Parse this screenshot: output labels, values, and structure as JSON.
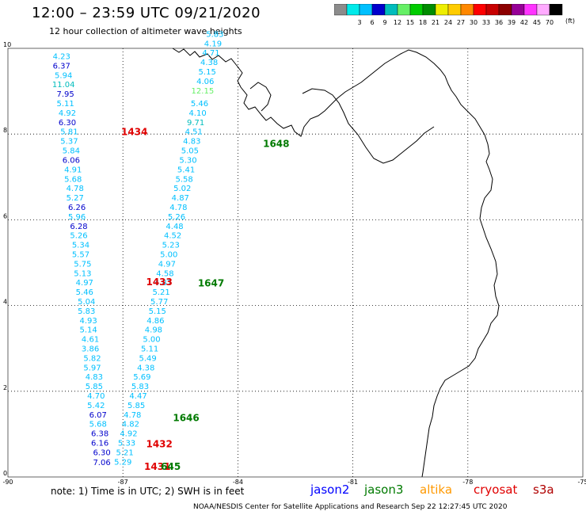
{
  "header": {
    "title": "12:00 – 23:59 UTC 09/21/2020",
    "subtitle": "12 hour collection of altimeter wave heights"
  },
  "colorbar": {
    "unit": "(ft)",
    "stops": [
      {
        "label": "",
        "color": "#8c8c8c"
      },
      {
        "label": "3",
        "color": "#00eaea"
      },
      {
        "label": "6",
        "color": "#00c0ff"
      },
      {
        "label": "9",
        "color": "#0000cc"
      },
      {
        "label": "12",
        "color": "#00bcbc"
      },
      {
        "label": "15",
        "color": "#66f066"
      },
      {
        "label": "18",
        "color": "#00cc00"
      },
      {
        "label": "21",
        "color": "#008c00"
      },
      {
        "label": "24",
        "color": "#eeee00"
      },
      {
        "label": "27",
        "color": "#ffcc00"
      },
      {
        "label": "30",
        "color": "#ff8800"
      },
      {
        "label": "33",
        "color": "#ff0000"
      },
      {
        "label": "36",
        "color": "#c80000"
      },
      {
        "label": "39",
        "color": "#8c0000"
      },
      {
        "label": "42",
        "color": "#960096"
      },
      {
        "label": "45",
        "color": "#ff33ff"
      },
      {
        "label": "70",
        "color": "#ffaaff"
      },
      {
        "label": "",
        "color": "#000000"
      }
    ]
  },
  "axes": {
    "lon_ticks": [
      -90,
      -87,
      -84,
      -81,
      -78,
      -75
    ],
    "lat_ticks": [
      0,
      2,
      4,
      6,
      8,
      10
    ],
    "lon_labels": [
      "-90",
      "-87",
      "-84",
      "-81",
      "-78",
      "-75"
    ],
    "lat_labels": [
      "0",
      "2",
      "4",
      "6",
      "8",
      "10"
    ]
  },
  "track_west": [
    {
      "lon": -88.6,
      "lat": 9.75,
      "value": "4.23"
    },
    {
      "lon": -88.6,
      "lat": 9.53,
      "value": "6.37"
    },
    {
      "lon": -88.55,
      "lat": 9.31,
      "value": "5.94"
    },
    {
      "lon": -88.55,
      "lat": 9.09,
      "value": "11.04"
    },
    {
      "lon": -88.5,
      "lat": 8.87,
      "value": "7.95"
    },
    {
      "lon": -88.5,
      "lat": 8.65,
      "value": "5.11"
    },
    {
      "lon": -88.45,
      "lat": 8.43,
      "value": "4.92"
    },
    {
      "lon": -88.45,
      "lat": 8.21,
      "value": "6.30"
    },
    {
      "lon": -88.4,
      "lat": 7.99,
      "value": "5.81"
    },
    {
      "lon": -88.4,
      "lat": 7.77,
      "value": "5.37"
    },
    {
      "lon": -88.35,
      "lat": 7.55,
      "value": "5.84"
    },
    {
      "lon": -88.35,
      "lat": 7.33,
      "value": "6.06"
    },
    {
      "lon": -88.3,
      "lat": 7.11,
      "value": "4.91"
    },
    {
      "lon": -88.3,
      "lat": 6.89,
      "value": "5.68"
    },
    {
      "lon": -88.25,
      "lat": 6.67,
      "value": "4.78"
    },
    {
      "lon": -88.25,
      "lat": 6.45,
      "value": "5.27"
    },
    {
      "lon": -88.2,
      "lat": 6.23,
      "value": "6.26"
    },
    {
      "lon": -88.2,
      "lat": 6.01,
      "value": "5.96"
    },
    {
      "lon": -88.15,
      "lat": 5.79,
      "value": "6.28"
    },
    {
      "lon": -88.15,
      "lat": 5.57,
      "value": "5.26"
    },
    {
      "lon": -88.1,
      "lat": 5.35,
      "value": "5.34"
    },
    {
      "lon": -88.1,
      "lat": 5.13,
      "value": "5.57"
    },
    {
      "lon": -88.05,
      "lat": 4.91,
      "value": "5.75"
    },
    {
      "lon": -88.05,
      "lat": 4.69,
      "value": "5.13"
    },
    {
      "lon": -88.0,
      "lat": 4.47,
      "value": "4.97"
    },
    {
      "lon": -88.0,
      "lat": 4.25,
      "value": "5.46"
    },
    {
      "lon": -87.95,
      "lat": 4.03,
      "value": "5.04"
    },
    {
      "lon": -87.95,
      "lat": 3.81,
      "value": "5.83"
    },
    {
      "lon": -87.9,
      "lat": 3.59,
      "value": "4.93"
    },
    {
      "lon": -87.9,
      "lat": 3.37,
      "value": "5.14"
    },
    {
      "lon": -87.85,
      "lat": 3.15,
      "value": "4.61"
    },
    {
      "lon": -87.85,
      "lat": 2.93,
      "value": "3.86"
    },
    {
      "lon": -87.8,
      "lat": 2.71,
      "value": "5.82"
    },
    {
      "lon": -87.8,
      "lat": 2.49,
      "value": "5.97"
    },
    {
      "lon": -87.75,
      "lat": 2.27,
      "value": "4.83"
    },
    {
      "lon": -87.75,
      "lat": 2.05,
      "value": "5.85"
    },
    {
      "lon": -87.7,
      "lat": 1.83,
      "value": "4.70"
    },
    {
      "lon": -87.7,
      "lat": 1.61,
      "value": "5.42"
    },
    {
      "lon": -87.65,
      "lat": 1.39,
      "value": "6.07"
    },
    {
      "lon": -87.65,
      "lat": 1.17,
      "value": "5.68"
    },
    {
      "lon": -87.6,
      "lat": 0.95,
      "value": "6.38"
    },
    {
      "lon": -87.6,
      "lat": 0.73,
      "value": "6.16"
    },
    {
      "lon": -87.55,
      "lat": 0.51,
      "value": "6.30"
    },
    {
      "lon": -87.55,
      "lat": 0.28,
      "value": "7.06"
    }
  ],
  "track_east": [
    {
      "lon": -87.0,
      "lat": 0.29,
      "value": "5.29"
    },
    {
      "lon": -86.95,
      "lat": 0.51,
      "value": "5.21"
    },
    {
      "lon": -86.9,
      "lat": 0.73,
      "value": "5.33"
    },
    {
      "lon": -86.85,
      "lat": 0.95,
      "value": "4.92"
    },
    {
      "lon": -86.8,
      "lat": 1.17,
      "value": "4.82"
    },
    {
      "lon": -86.75,
      "lat": 1.39,
      "value": "4.78"
    },
    {
      "lon": -86.65,
      "lat": 1.61,
      "value": "5.85"
    },
    {
      "lon": -86.6,
      "lat": 1.83,
      "value": "4.47"
    },
    {
      "lon": -86.55,
      "lat": 2.05,
      "value": "5.83"
    },
    {
      "lon": -86.5,
      "lat": 2.27,
      "value": "5.69"
    },
    {
      "lon": -86.4,
      "lat": 2.49,
      "value": "4.38"
    },
    {
      "lon": -86.35,
      "lat": 2.71,
      "value": "5.49"
    },
    {
      "lon": -86.3,
      "lat": 2.93,
      "value": "5.11"
    },
    {
      "lon": -86.25,
      "lat": 3.15,
      "value": "5.00"
    },
    {
      "lon": -86.2,
      "lat": 3.37,
      "value": "4.98"
    },
    {
      "lon": -86.15,
      "lat": 3.59,
      "value": "4.86"
    },
    {
      "lon": -86.1,
      "lat": 3.81,
      "value": "5.15"
    },
    {
      "lon": -86.05,
      "lat": 4.03,
      "value": "5.77"
    },
    {
      "lon": -86.0,
      "lat": 4.25,
      "value": "5.21"
    },
    {
      "lon": -85.95,
      "lat": 4.47,
      "value": "4.87"
    },
    {
      "lon": -85.9,
      "lat": 4.69,
      "value": "4.58"
    },
    {
      "lon": -85.85,
      "lat": 4.91,
      "value": "4.97"
    },
    {
      "lon": -85.8,
      "lat": 5.13,
      "value": "5.00"
    },
    {
      "lon": -85.75,
      "lat": 5.35,
      "value": "5.23"
    },
    {
      "lon": -85.7,
      "lat": 5.57,
      "value": "4.52"
    },
    {
      "lon": -85.65,
      "lat": 5.79,
      "value": "4.48"
    },
    {
      "lon": -85.6,
      "lat": 6.01,
      "value": "5.26"
    },
    {
      "lon": -85.55,
      "lat": 6.23,
      "value": "4.78"
    },
    {
      "lon": -85.5,
      "lat": 6.45,
      "value": "4.87"
    },
    {
      "lon": -85.45,
      "lat": 6.67,
      "value": "5.02"
    },
    {
      "lon": -85.4,
      "lat": 6.89,
      "value": "5.58"
    },
    {
      "lon": -85.35,
      "lat": 7.11,
      "value": "5.41"
    },
    {
      "lon": -85.3,
      "lat": 7.33,
      "value": "5.30"
    },
    {
      "lon": -85.25,
      "lat": 7.55,
      "value": "5.05"
    },
    {
      "lon": -85.2,
      "lat": 7.77,
      "value": "4.83"
    },
    {
      "lon": -85.15,
      "lat": 7.99,
      "value": "4.51"
    },
    {
      "lon": -85.1,
      "lat": 8.21,
      "value": "9.71"
    },
    {
      "lon": -85.05,
      "lat": 8.43,
      "value": "4.10"
    },
    {
      "lon": -85.0,
      "lat": 8.65,
      "value": "5.46"
    },
    {
      "lon": -84.92,
      "lat": 8.95,
      "value": "12.15"
    },
    {
      "lon": -84.85,
      "lat": 9.17,
      "value": "4.06"
    },
    {
      "lon": -84.8,
      "lat": 9.39,
      "value": "5.15"
    },
    {
      "lon": -84.75,
      "lat": 9.61,
      "value": "4.38"
    },
    {
      "lon": -84.7,
      "lat": 9.83,
      "value": "4.71"
    },
    {
      "lon": -84.65,
      "lat": 10.05,
      "value": "4.19"
    },
    {
      "lon": -84.6,
      "lat": 10.27,
      "value": "5.83"
    }
  ],
  "time_labels": [
    {
      "text": "1434",
      "lon": -86.7,
      "lat": 7.98,
      "sat": "cryosat"
    },
    {
      "text": "1433",
      "lon": -86.05,
      "lat": 4.47,
      "sat": "cryosat"
    },
    {
      "text": "1432",
      "lon": -86.05,
      "lat": 0.69,
      "sat": "cryosat"
    },
    {
      "text": "1431",
      "lon": -86.1,
      "lat": 0.17,
      "sat": "cryosat"
    },
    {
      "text": "1648",
      "lon": -83.0,
      "lat": 7.7,
      "sat": "jason3"
    },
    {
      "text": "1647",
      "lon": -84.7,
      "lat": 4.45,
      "sat": "jason3"
    },
    {
      "text": "1646",
      "lon": -85.35,
      "lat": 1.3,
      "sat": "jason3"
    },
    {
      "text": "645",
      "lon": -85.75,
      "lat": 0.17,
      "sat": "jason3"
    }
  ],
  "note": "note:  1) Time is in UTC;  2) SWH is in feet",
  "satellites": [
    {
      "name": "jason2",
      "color": "#0000ff"
    },
    {
      "name": "jason3",
      "color": "#007a00"
    },
    {
      "name": "altika",
      "color": "#ff9900"
    },
    {
      "name": "cryosat",
      "color": "#e00000"
    },
    {
      "name": "s3a",
      "color": "#b00000"
    }
  ],
  "footer": "NOAA/NESDIS Center for Satellite Applications and Research    Sep 22 12:27:45 UTC 2020"
}
